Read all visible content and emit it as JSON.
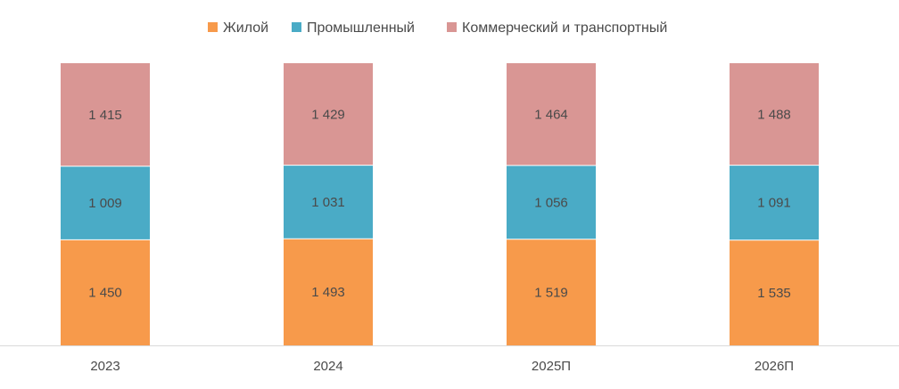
{
  "chart_data": {
    "type": "bar",
    "stacked": true,
    "categories": [
      "2023",
      "2024",
      "2025П",
      "2026П"
    ],
    "series": [
      {
        "name": "Жилой",
        "values": [
          1450,
          1493,
          1519,
          1535
        ],
        "labels": [
          "1 450",
          "1 493",
          "1 519",
          "1 535"
        ],
        "color": "#f79a4b"
      },
      {
        "name": "Промышленный",
        "values": [
          1009,
          1031,
          1056,
          1091
        ],
        "labels": [
          "1 009",
          "1 031",
          "1 056",
          "1 091"
        ],
        "color": "#4aabc6"
      },
      {
        "name": "Коммерческий и транспортный",
        "values": [
          1415,
          1429,
          1464,
          1488
        ],
        "labels": [
          "1 415",
          "1 429",
          "1 464",
          "1 488"
        ],
        "color": "#d99694"
      }
    ],
    "legend_position": "top-center",
    "grid": false,
    "percent_scaled": true,
    "colors": {
      "axis_line": "#d9d9d9",
      "text": "#4a4a4a"
    }
  }
}
